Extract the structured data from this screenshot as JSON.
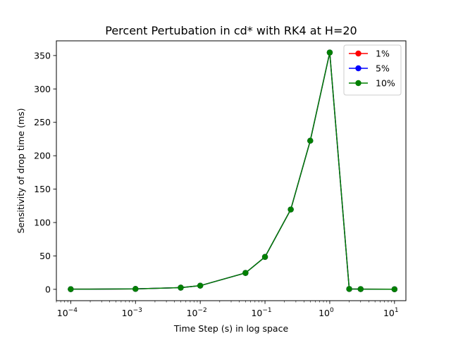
{
  "chart_data": {
    "type": "line",
    "title": "Percent Pertubation in cd* with RK4 at H=20",
    "xlabel": "Time Step (s) in log space",
    "ylabel": "Sensitivity of drop time (ms)",
    "x_scale": "log",
    "xlim": [
      6e-05,
      15
    ],
    "ylim": [
      -17,
      372
    ],
    "x_ticks": [
      {
        "value": 0.0001,
        "base": "10",
        "exp": "−4"
      },
      {
        "value": 0.001,
        "base": "10",
        "exp": "−3"
      },
      {
        "value": 0.01,
        "base": "10",
        "exp": "−2"
      },
      {
        "value": 0.1,
        "base": "10",
        "exp": "−1"
      },
      {
        "value": 1,
        "base": "10",
        "exp": "0"
      },
      {
        "value": 10,
        "base": "10",
        "exp": "1"
      }
    ],
    "y_ticks": [
      0,
      50,
      100,
      150,
      200,
      250,
      300,
      350
    ],
    "x": [
      0.0001,
      0.001,
      0.005,
      0.01,
      0.05,
      0.1,
      0.25,
      0.5,
      1,
      2,
      3,
      10
    ],
    "series": [
      {
        "name": "1%",
        "color": "#ff0000",
        "values": [
          0.2,
          0.6,
          2.5,
          5.5,
          24.5,
          48.5,
          119.5,
          222.5,
          354.5,
          0.5,
          0.3,
          0.1
        ]
      },
      {
        "name": "5%",
        "color": "#0000ff",
        "values": [
          0.2,
          0.6,
          2.5,
          5.5,
          24.5,
          48.5,
          119.5,
          222.5,
          354.5,
          0.5,
          0.3,
          0.1
        ]
      },
      {
        "name": "10%",
        "color": "#008000",
        "values": [
          0.2,
          0.6,
          2.5,
          5.5,
          24.5,
          48.5,
          119.5,
          222.5,
          354.5,
          0.5,
          0.3,
          0.1
        ]
      }
    ],
    "legend_position": "top-right",
    "grid": false
  }
}
